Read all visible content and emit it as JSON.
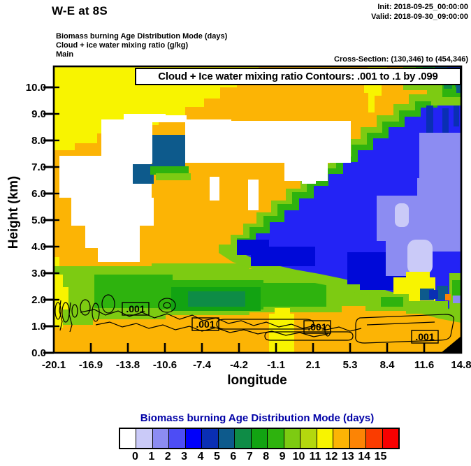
{
  "header": {
    "title": "W-E at 8S",
    "init": "Init: 2018-09-25_00:00:00",
    "valid": "Valid: 2018-09-30_09:00:00"
  },
  "meta": {
    "line1": "Biomass burning Age Distribution Mode   (days)",
    "line2": "Cloud + ice water mixing ratio   (g/kg)",
    "line3": "Main",
    "cross_section": "Cross-Section: (130,346) to (454,346)"
  },
  "plot": {
    "banner": "Cloud + Ice water mixing ratio Contours: .001 to .1 by .099",
    "y_axis_label": "Height (km)",
    "x_axis_label": "longitude",
    "y_ticks": [
      "0.0",
      "1.0",
      "2.0",
      "3.0",
      "4.0",
      "5.0",
      "6.0",
      "7.0",
      "8.0",
      "9.0",
      "10.0"
    ],
    "x_ticks": [
      "-20.1",
      "-16.9",
      "-13.8",
      "-10.6",
      "-7.4",
      "-4.2",
      "-1.1",
      "2.1",
      "5.3",
      "8.4",
      "11.6",
      "14.8"
    ],
    "contour_labels": [
      ".001",
      ".001",
      ".001",
      ".001"
    ]
  },
  "colorbar": {
    "title": "Biomass burning Age Distribution Mode  (days)",
    "title_color": "#0000a6",
    "tick_labels": [
      "0",
      "1",
      "2",
      "3",
      "4",
      "5",
      "6",
      "7",
      "8",
      "9",
      "10",
      "11",
      "12",
      "13",
      "14",
      "15"
    ],
    "colors": [
      "#ffffff",
      "#cacaf8",
      "#8c8cf2",
      "#4d4df5",
      "#0000fa",
      "#0a2fb4",
      "#0d5a8c",
      "#0e8c46",
      "#12a312",
      "#2eb30e",
      "#7dcb12",
      "#b4d80e",
      "#f8f400",
      "#fcb405",
      "#fc8405",
      "#fa3c00",
      "#f80000"
    ]
  },
  "chart_data": {
    "type": "heatmap",
    "title": "Cloud + Ice water mixing ratio Contours: .001 to .1 by .099",
    "xlabel": "longitude",
    "ylabel": "Height (km)",
    "xlim": [
      -20.1,
      14.8
    ],
    "ylim": [
      0,
      10.8
    ],
    "x_ticks": [
      -20.1,
      -16.9,
      -13.8,
      -10.6,
      -7.4,
      -4.2,
      -1.1,
      2.1,
      5.3,
      8.4,
      11.6,
      14.8
    ],
    "y_ticks": [
      0,
      1,
      2,
      3,
      4,
      5,
      6,
      7,
      8,
      9,
      10
    ],
    "grid": false,
    "fill_variable": "Biomass burning Age Distribution Mode (days)",
    "fill_scale_days": [
      0,
      1,
      2,
      3,
      4,
      5,
      6,
      7,
      8,
      9,
      10,
      11,
      12,
      13,
      14,
      15
    ],
    "fill_palette": [
      "#ffffff",
      "#cacaf8",
      "#8c8cf2",
      "#4d4df5",
      "#0000fa",
      "#0a2fb4",
      "#0d5a8c",
      "#0e8c46",
      "#12a312",
      "#2eb30e",
      "#7dcb12",
      "#b4d80e",
      "#f8f400",
      "#fcb405",
      "#fc8405",
      "#fa3c00",
      "#f80000"
    ],
    "contour_variable": "Cloud + Ice water mixing ratio (g/kg)",
    "contour_levels": [
      0.001,
      0.1
    ],
    "contour_label_text": ".001",
    "cross_section_gridpoints": "(130,346) to (454,346)",
    "features": [
      {
        "value_days": 12,
        "color": "#f8f400",
        "region": "yellow wedge upper-left: lon -20.1 to -11 above ~8 km, tapering to left edge at ~5.2 km; thin strips at left edge 0.5-3.5 km and at lon ~-1 near surface"
      },
      {
        "value_days": null,
        "color": "#ffffff",
        "region": "white cloud cluster (age below scale): lon -18.5 to -5.5, height ~5.3-8.8 km with descending fingers to ~3.5 km"
      },
      {
        "value_days": 5,
        "color": "#0d5a8c",
        "region": "teal patch at base of cloud: lon ~-11.5 to -9.5 near 7 km"
      },
      {
        "value_days": 4,
        "color": "#2323f5",
        "region": "large blue diagonal swath: from (14.8 lon, 9.5 km) down-left to (~0 lon, 2.5 km), bottom near 2 km on right"
      },
      {
        "value_days": 2,
        "color": "#8c8cf2",
        "region": "periwinkle pocket inside swath: lon 7-14.8, height 2.5-6 km, with pale-lavender (1 day) blobs near lon 10-12 at 3-5.5 km"
      },
      {
        "value_days": 9,
        "color": "#2eb30e",
        "region": "green band: lon -20.1 to ~2, height ~1.2-3.2 km, darker green cores near lon -13 to -7"
      },
      {
        "value_days": 10,
        "color": "#7dcb12",
        "region": "light-green fringe bordering the blue swath and top-right corner"
      },
      {
        "value_days": 13,
        "color": "#fcb405",
        "region": "amber background over most of the domain"
      },
      {
        "value_days": null,
        "color": "#000000",
        "region": "terrain wedge at bottom-right corner near lon 14.8"
      }
    ],
    "contour_annotations": [
      {
        "label": ".001",
        "approx_lon": -13.9,
        "approx_height_km": 1.6
      },
      {
        "label": ".001",
        "approx_lon": -7.5,
        "approx_height_km": 1.0
      },
      {
        "label": ".001",
        "approx_lon": 2.0,
        "approx_height_km": 0.9
      },
      {
        "label": ".001",
        "approx_lon": 11.3,
        "approx_height_km": 0.6
      }
    ]
  }
}
